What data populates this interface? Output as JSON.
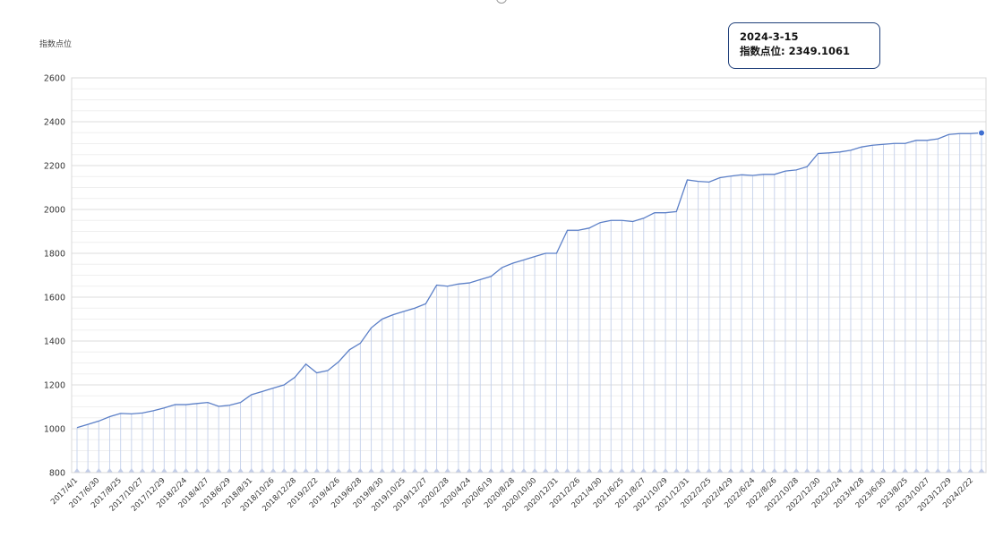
{
  "chart_data": {
    "type": "line",
    "title": "",
    "xlabel": "",
    "ylabel": "指数点位",
    "ylim": [
      800,
      2600
    ],
    "yticks": [
      800,
      1000,
      1200,
      1400,
      1600,
      1800,
      2000,
      2200,
      2400,
      2600
    ],
    "grid": true,
    "legend": "none",
    "line_color": "#5b7fc7",
    "drop_line_color": "#c9d4ec",
    "x_tick_labels": [
      "2017/4/1",
      "2017/6/30",
      "2017/8/25",
      "2017/10/27",
      "2017/12/29",
      "2018/2/24",
      "2018/4/27",
      "2018/6/29",
      "2018/8/31",
      "2018/10/26",
      "2018/12/28",
      "2019/2/22",
      "2019/4/26",
      "2019/6/28",
      "2019/8/30",
      "2019/10/25",
      "2019/12/27",
      "2020/2/28",
      "2020/4/24",
      "2020/6/19",
      "2020/8/28",
      "2020/10/30",
      "2020/12/31",
      "2021/2/26",
      "2021/4/30",
      "2021/6/25",
      "2021/8/27",
      "2021/10/29",
      "2021/12/31",
      "2022/2/25",
      "2022/4/29",
      "2022/6/24",
      "2022/8/26",
      "2022/10/28",
      "2022/12/30",
      "2023/2/24",
      "2023/4/28",
      "2023/6/30",
      "2023/8/25",
      "2023/10/27",
      "2023/12/29",
      "2024/2/22"
    ],
    "values": [
      1005,
      1020,
      1035,
      1055,
      1070,
      1068,
      1072,
      1082,
      1095,
      1110,
      1110,
      1115,
      1120,
      1102,
      1107,
      1120,
      1155,
      1170,
      1185,
      1200,
      1235,
      1295,
      1255,
      1265,
      1305,
      1360,
      1390,
      1460,
      1500,
      1520,
      1535,
      1550,
      1570,
      1655,
      1650,
      1660,
      1665,
      1680,
      1695,
      1735,
      1755,
      1770,
      1785,
      1800,
      1800,
      1905,
      1905,
      1915,
      1940,
      1950,
      1950,
      1945,
      1960,
      1985,
      1985,
      1990,
      2135,
      2128,
      2125,
      2145,
      2152,
      2158,
      2155,
      2160,
      2160,
      2175,
      2180,
      2195,
      2255,
      2258,
      2262,
      2270,
      2285,
      2293,
      2297,
      2301,
      2301,
      2315,
      2315,
      2322,
      2342,
      2346,
      2346,
      2349.1061
    ],
    "highlight": {
      "date": "2024-3-15",
      "label": "指数点位",
      "value": "2349.1061",
      "color": "#3f6fd1"
    }
  },
  "tooltip": {
    "date": "2024-3-15",
    "value_line": "指数点位: 2349.1061"
  }
}
